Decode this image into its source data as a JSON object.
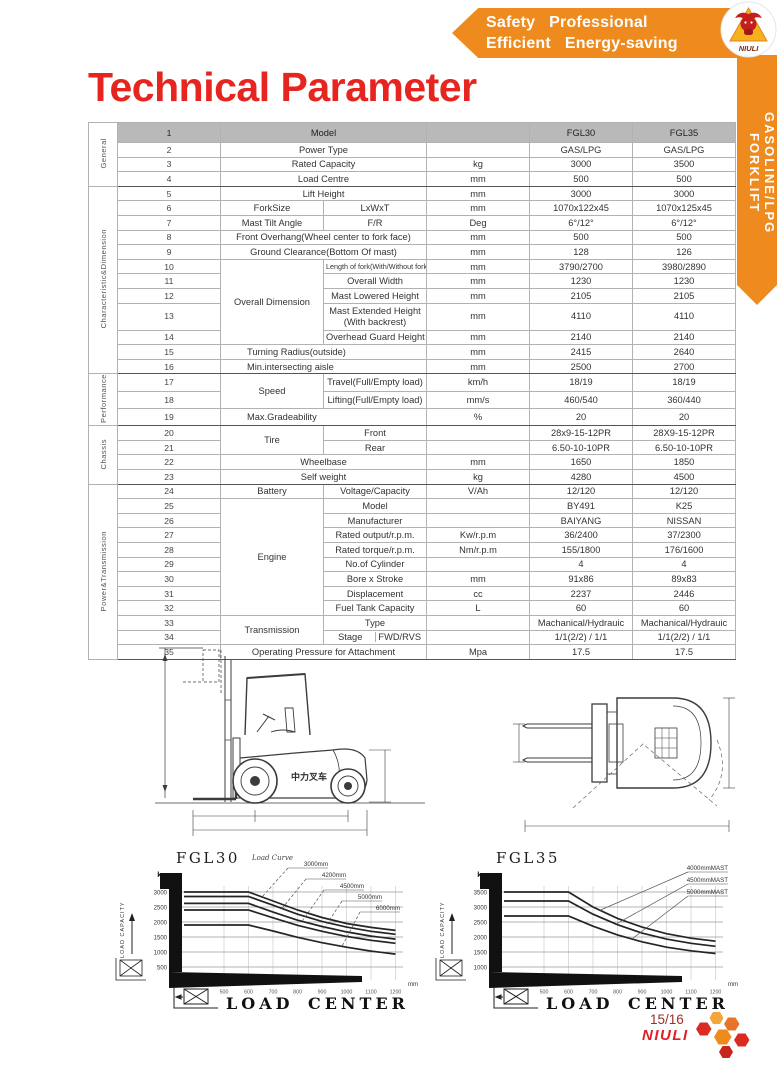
{
  "banner": {
    "line1": "Safety   Professional",
    "line2": "Efficient   Energy-saving"
  },
  "ribbon": {
    "text": "GASOLINE/LPG FORKLIFT"
  },
  "logo": {
    "brand": "NIULI"
  },
  "page_title": "Technical Parameter",
  "footer": {
    "page": "15/16",
    "brand": "NIULI"
  },
  "drawings": {
    "vehicle_marking": "中力叉车"
  },
  "table": {
    "groups": [
      {
        "label": "General",
        "from": 1,
        "to": 4
      },
      {
        "label": "Characteristic&Dimension",
        "from": 5,
        "to": 16
      },
      {
        "label": "Performance",
        "from": 17,
        "to": 19
      },
      {
        "label": "Chassis",
        "from": 20,
        "to": 23
      },
      {
        "label": "Power&Transmission",
        "from": 24,
        "to": 35
      }
    ],
    "rows": [
      {
        "n": 1,
        "header": true,
        "c1": "Model",
        "c1span": 2,
        "unit": "",
        "v30": "FGL30",
        "v35": "FGL35"
      },
      {
        "n": 2,
        "c1": "Power Type",
        "c1span": 2,
        "unit": "",
        "v30": "GAS/LPG",
        "v35": "GAS/LPG"
      },
      {
        "n": 3,
        "c1": "Rated Capacity",
        "c1span": 2,
        "unit": "kg",
        "v30": "3000",
        "v35": "3500"
      },
      {
        "n": 4,
        "c1": "Load Centre",
        "c1span": 2,
        "unit": "mm",
        "v30": "500",
        "v35": "500"
      },
      {
        "n": 5,
        "c1": "Lift Height",
        "c1span": 2,
        "unit": "mm",
        "v30": "3000",
        "v35": "3000"
      },
      {
        "n": 6,
        "c1": "ForkSize",
        "c2": "LxWxT",
        "unit": "mm",
        "v30": "1070x122x45",
        "v35": "1070x125x45"
      },
      {
        "n": 7,
        "c1": "Mast Tilt Angle",
        "c2": "F/R",
        "unit": "Deg",
        "v30": "6°/12°",
        "v35": "6°/12°"
      },
      {
        "n": 8,
        "c1": "Front Overhang(Wheel center to fork face)",
        "c1span": 2,
        "unit": "mm",
        "v30": "500",
        "v35": "500"
      },
      {
        "n": 9,
        "c1": "Ground Clearance(Bottom Of mast)",
        "c1span": 2,
        "unit": "mm",
        "v30": "128",
        "v35": "126"
      },
      {
        "n": 10,
        "c1": "Overall Dimension",
        "c1rowspan": 5,
        "c2": "Length of fork(With/Without fork)",
        "c2small": true,
        "unit": "mm",
        "v30": "3790/2700",
        "v35": "3980/2890"
      },
      {
        "n": 11,
        "c2": "Overall Width",
        "unit": "mm",
        "v30": "1230",
        "v35": "1230"
      },
      {
        "n": 12,
        "c2": "Mast Lowered Height",
        "unit": "mm",
        "v30": "2105",
        "v35": "2105"
      },
      {
        "n": 13,
        "tall": true,
        "c2": "Mast Extended Height\n(With backrest)",
        "unit": "mm",
        "v30": "4110",
        "v35": "4110"
      },
      {
        "n": 14,
        "c2": "Overhead Guard Height",
        "unit": "mm",
        "v30": "2140",
        "v35": "2140"
      },
      {
        "n": 15,
        "c1": "Turning Radius(outside)",
        "c1span": 2,
        "alignLeft": true,
        "unit": "mm",
        "v30": "2415",
        "v35": "2640"
      },
      {
        "n": 16,
        "c1": "Min.intersecting aisle",
        "c1span": 2,
        "alignLeft": true,
        "unit": "mm",
        "v30": "2500",
        "v35": "2700"
      },
      {
        "n": 17,
        "c1": "Speed",
        "c1rowspan": 2,
        "c2": "Travel(Full/Empty load)",
        "unit": "km/h",
        "v30": "18/19",
        "v35": "18/19"
      },
      {
        "n": 18,
        "c2": "Lifting(Full/Empty load)",
        "unit": "mm/s",
        "v30": "460/540",
        "v35": "360/440"
      },
      {
        "n": 19,
        "c1": "Max.Gradeability",
        "c1span": 2,
        "alignLeft": true,
        "unit": "%",
        "v30": "20",
        "v35": "20"
      },
      {
        "n": 20,
        "c1": "Tire",
        "c1rowspan": 2,
        "c2": "Front",
        "unit": "",
        "v30": "28x9-15-12PR",
        "v35": "28X9-15-12PR"
      },
      {
        "n": 21,
        "c2": "Rear",
        "unit": "",
        "v30": "6.50-10-10PR",
        "v35": "6.50-10-10PR"
      },
      {
        "n": 22,
        "c1": "Wheelbase",
        "c1span": 2,
        "unit": "mm",
        "v30": "1650",
        "v35": "1850"
      },
      {
        "n": 23,
        "c1": "Self weight",
        "c1span": 2,
        "unit": "kg",
        "v30": "4280",
        "v35": "4500"
      },
      {
        "n": 24,
        "c1": "Battery",
        "c2": "Voltage/Capacity",
        "unit": "V/Ah",
        "v30": "12/120",
        "v35": "12/120"
      },
      {
        "n": 25,
        "c1": "Engine",
        "c1rowspan": 8,
        "c2": "Model",
        "unit": "",
        "v30": "BY491",
        "v35": "K25"
      },
      {
        "n": 26,
        "c2": "Manufacturer",
        "unit": "",
        "v30": "BAIYANG",
        "v35": "NISSAN"
      },
      {
        "n": 27,
        "c2": "Rated output/r.p.m.",
        "unit": "Kw/r.p.m",
        "v30": "36/2400",
        "v35": "37/2300"
      },
      {
        "n": 28,
        "c2": "Rated torque/r.p.m.",
        "unit": "Nm/r.p.m",
        "v30": "155/1800",
        "v35": "176/1600"
      },
      {
        "n": 29,
        "c2": "No.of Cylinder",
        "unit": "",
        "v30": "4",
        "v35": "4"
      },
      {
        "n": 30,
        "c2": "Bore x Stroke",
        "unit": "mm",
        "v30": "91x86",
        "v35": "89x83"
      },
      {
        "n": 31,
        "c2": "Displacement",
        "unit": "cc",
        "v30": "2237",
        "v35": "2446"
      },
      {
        "n": 32,
        "c2": "Fuel Tank Capacity",
        "unit": "L",
        "v30": "60",
        "v35": "60"
      },
      {
        "n": 33,
        "c1": "Transmission",
        "c1rowspan": 2,
        "c2": "Type",
        "unit": "",
        "v30": "Machanical/Hydrauic",
        "v35": "Machanical/Hydrauic"
      },
      {
        "n": 34,
        "c2a": "Stage",
        "c2b": "FWD/RVS",
        "unit": "",
        "v30": "1/1(2/2) / 1/1",
        "v35": "1/1(2/2) / 1/1"
      },
      {
        "n": 35,
        "c1": "Operating Pressure for Attachment",
        "c1span": 2,
        "unit": "Mpa",
        "v30": "17.5",
        "v35": "17.5"
      }
    ]
  },
  "chart_data": [
    {
      "type": "line",
      "title": "FGL30",
      "subtitle": "Load Curve",
      "ylabel": "LOAD CAPACITY",
      "y_unit": "kg",
      "xlabel": "LOAD CENTER",
      "x_unit": "mm",
      "x": [
        500,
        600,
        700,
        800,
        900,
        1000,
        1100,
        1200
      ],
      "yticks": [
        3000,
        2500,
        2000,
        1500,
        1000,
        500
      ],
      "grid": true,
      "legend_position": "top-right",
      "series": [
        {
          "name": "3000mm",
          "values": [
            3000,
            3000,
            2700,
            2400,
            2150,
            1950,
            1820,
            1720
          ]
        },
        {
          "name": "4200mm",
          "values": [
            2850,
            2850,
            2560,
            2260,
            2020,
            1830,
            1690,
            1590
          ]
        },
        {
          "name": "4500mm",
          "values": [
            2620,
            2620,
            2330,
            2060,
            1850,
            1670,
            1530,
            1430
          ]
        },
        {
          "name": "5000mm",
          "values": [
            2400,
            2400,
            2140,
            1890,
            1690,
            1520,
            1390,
            1290
          ]
        },
        {
          "name": "6000mm",
          "values": [
            1900,
            1900,
            1700,
            1490,
            1310,
            1160,
            1030,
            930
          ]
        }
      ]
    },
    {
      "type": "line",
      "title": "FGL35",
      "subtitle": "",
      "ylabel": "LOAD CAPACITY",
      "y_unit": "kg",
      "xlabel": "LOAD CENTER",
      "x_unit": "mm",
      "x": [
        500,
        600,
        700,
        800,
        900,
        1000,
        1100,
        1200
      ],
      "yticks": [
        3500,
        3000,
        2500,
        2000,
        1500,
        1000
      ],
      "grid": true,
      "legend_position": "top-right",
      "series": [
        {
          "name": "4000mmMAST",
          "values": [
            3500,
            3500,
            3000,
            2620,
            2330,
            2110,
            1960,
            1860
          ]
        },
        {
          "name": "4500mmMAST",
          "values": [
            3200,
            3200,
            2760,
            2410,
            2130,
            1930,
            1790,
            1690
          ]
        },
        {
          "name": "5000mmMAST",
          "values": [
            2700,
            2700,
            2360,
            2070,
            1840,
            1660,
            1540,
            1450
          ]
        }
      ]
    }
  ]
}
